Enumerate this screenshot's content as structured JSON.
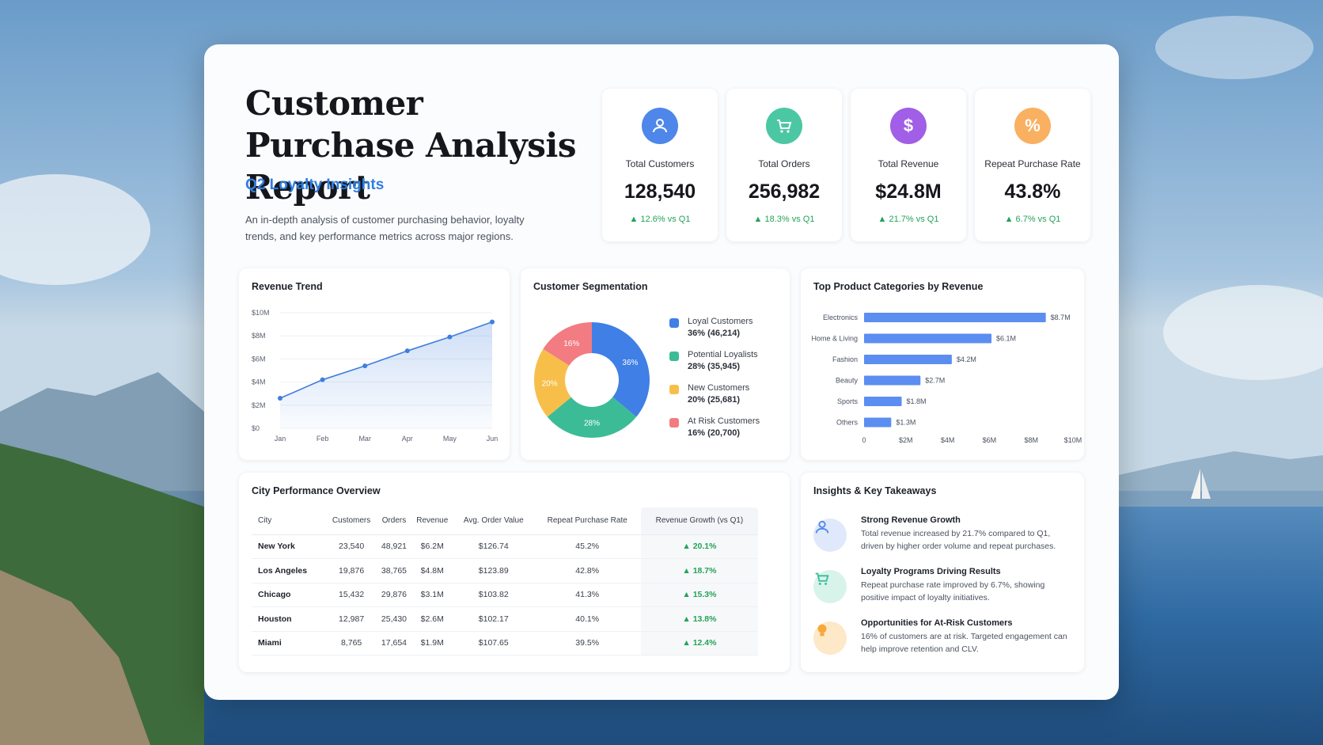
{
  "header": {
    "title": "Customer Purchase Analysis Report",
    "subtitle": "Q2 Loyalty Insights",
    "description": "An in-depth analysis of customer purchasing behavior, loyalty trends, and key performance metrics across major regions."
  },
  "kpis": [
    {
      "label": "Total Customers",
      "value": "128,540",
      "delta": "▲ 12.6% vs Q1",
      "icon": "customers-icon",
      "color": "#4e86ea"
    },
    {
      "label": "Total Orders",
      "value": "256,982",
      "delta": "▲ 18.3% vs Q1",
      "icon": "cart-icon",
      "color": "#4cc7a4"
    },
    {
      "label": "Total Revenue",
      "value": "$24.8M",
      "delta": "▲ 21.7% vs Q1",
      "icon": "dollar-icon",
      "color": "#a15ee6"
    },
    {
      "label": "Repeat Purchase Rate",
      "value": "43.8%",
      "delta": "▲ 6.7% vs Q1",
      "icon": "percent-icon",
      "color": "#f9b060"
    }
  ],
  "icon_glyphs": {
    "customers": "👥",
    "cart": "🛒",
    "dollar": "$",
    "percent": "%",
    "bulb": "💡"
  },
  "chart_data": [
    {
      "type": "area",
      "title": "Revenue Trend",
      "x": [
        "Jan",
        "Feb",
        "Mar",
        "Apr",
        "May",
        "Jun"
      ],
      "values": [
        2.6,
        4.2,
        5.4,
        6.7,
        7.9,
        9.2
      ],
      "y_ticks": [
        "$0",
        "$2M",
        "$4M",
        "$6M",
        "$8M",
        "$10M"
      ],
      "ylim": [
        0,
        10
      ],
      "color": "#3f7fdc"
    },
    {
      "type": "pie",
      "title": "Customer Segmentation",
      "slices": [
        {
          "name": "Loyal Customers",
          "value": 36,
          "pct_label": "36%",
          "detail": "36% (46,214)",
          "color": "#3f7fe6"
        },
        {
          "name": "Potential Loyalists",
          "value": 28,
          "pct_label": "28%",
          "detail": "28% (35,945)",
          "color": "#3bbc96"
        },
        {
          "name": "New Customers",
          "value": 20,
          "pct_label": "20%",
          "detail": "20% (25,681)",
          "color": "#f7bf4a"
        },
        {
          "name": "At Risk Customers",
          "value": 16,
          "pct_label": "16%",
          "detail": "16% (20,700)",
          "color": "#f27c82"
        }
      ]
    },
    {
      "type": "bar",
      "title": "Top Product Categories by Revenue",
      "categories": [
        "Electronics",
        "Home & Living",
        "Fashion",
        "Beauty",
        "Sports",
        "Others"
      ],
      "values": [
        8.7,
        6.1,
        4.2,
        2.7,
        1.8,
        1.3
      ],
      "value_labels": [
        "$8.7M",
        "$6.1M",
        "$4.2M",
        "$2.7M",
        "$1.8M",
        "$1.3M"
      ],
      "x_ticks": [
        "0",
        "$2M",
        "$4M",
        "$6M",
        "$8M",
        "$10M"
      ],
      "xlim": [
        0,
        10
      ],
      "color": "#5b8ef0"
    },
    {
      "type": "table",
      "title": "City Performance Overview",
      "columns": [
        "City",
        "Customers",
        "Orders",
        "Revenue",
        "Avg. Order Value",
        "Repeat Purchase Rate",
        "Revenue Growth (vs Q1)"
      ],
      "rows": [
        [
          "New York",
          "23,540",
          "48,921",
          "$6.2M",
          "$126.74",
          "45.2%",
          "▲ 20.1%"
        ],
        [
          "Los Angeles",
          "19,876",
          "38,765",
          "$4.8M",
          "$123.89",
          "42.8%",
          "▲ 18.7%"
        ],
        [
          "Chicago",
          "15,432",
          "29,876",
          "$3.1M",
          "$103.82",
          "41.3%",
          "▲ 15.3%"
        ],
        [
          "Houston",
          "12,987",
          "25,430",
          "$2.6M",
          "$102.17",
          "40.1%",
          "▲ 13.8%"
        ],
        [
          "Miami",
          "8,765",
          "17,654",
          "$1.9M",
          "$107.65",
          "39.5%",
          "▲ 12.4%"
        ]
      ]
    }
  ],
  "insights": {
    "title": "Insights & Key Takeaways",
    "items": [
      {
        "title": "Strong Revenue Growth",
        "text": "Total revenue increased by 21.7% compared to Q1, driven by higher order volume and repeat purchases.",
        "icon": "customers-icon"
      },
      {
        "title": "Loyalty Programs Driving Results",
        "text": "Repeat purchase rate improved by 6.7%, showing positive impact of loyalty initiatives.",
        "icon": "cart-icon"
      },
      {
        "title": "Opportunities for At-Risk Customers",
        "text": "16% of customers are at risk. Targeted engagement can help improve retention and CLV.",
        "icon": "bulb-icon"
      }
    ]
  }
}
